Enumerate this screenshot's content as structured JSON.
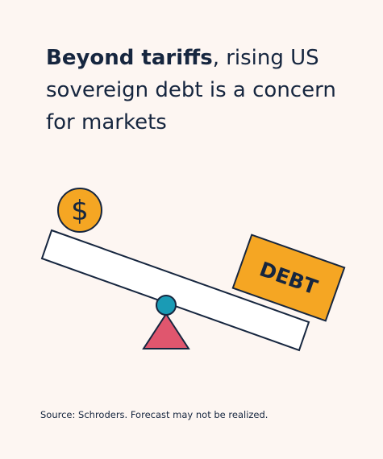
{
  "header": {
    "title_bold": "Beyond tariffs",
    "title_rest": ", rising US sovereign debt is a concern for markets"
  },
  "illustration": {
    "coin_label": "$",
    "box_label": "DEBT"
  },
  "footer": {
    "source": "Source: Schroders. Forecast may not be realized."
  }
}
